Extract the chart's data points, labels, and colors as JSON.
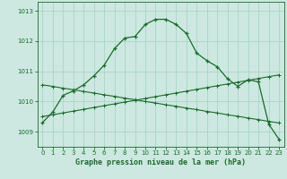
{
  "title": "Graphe pression niveau de la mer (hPa)",
  "background_color": "#cce8e0",
  "grid_color": "#aad4c8",
  "line_color": "#1a6b2a",
  "xlim": [
    -0.5,
    23.5
  ],
  "ylim": [
    1008.5,
    1013.3
  ],
  "yticks": [
    1009,
    1010,
    1011,
    1012,
    1013
  ],
  "xticks": [
    0,
    1,
    2,
    3,
    4,
    5,
    6,
    7,
    8,
    9,
    10,
    11,
    12,
    13,
    14,
    15,
    16,
    17,
    18,
    19,
    20,
    21,
    22,
    23
  ],
  "curve1": [
    1009.3,
    1009.65,
    1010.2,
    1010.35,
    1010.55,
    1010.85,
    1011.2,
    1011.75,
    1012.1,
    1012.15,
    1012.55,
    1012.72,
    1012.72,
    1012.55,
    1012.25,
    1011.6,
    1011.35,
    1011.15,
    1010.75,
    1010.5,
    1010.72,
    1010.65,
    1009.25,
    1008.75
  ],
  "line_rising": [
    1009.5,
    1009.56,
    1009.62,
    1009.68,
    1009.74,
    1009.8,
    1009.86,
    1009.92,
    1009.98,
    1010.04,
    1010.1,
    1010.16,
    1010.22,
    1010.28,
    1010.34,
    1010.4,
    1010.46,
    1010.52,
    1010.58,
    1010.64,
    1010.7,
    1010.76,
    1010.82,
    1010.88
  ],
  "line_falling": [
    1010.55,
    1010.5,
    1010.44,
    1010.39,
    1010.33,
    1010.28,
    1010.22,
    1010.17,
    1010.11,
    1010.06,
    1010.0,
    1009.95,
    1009.89,
    1009.84,
    1009.78,
    1009.73,
    1009.67,
    1009.62,
    1009.56,
    1009.51,
    1009.45,
    1009.4,
    1009.34,
    1009.29
  ]
}
